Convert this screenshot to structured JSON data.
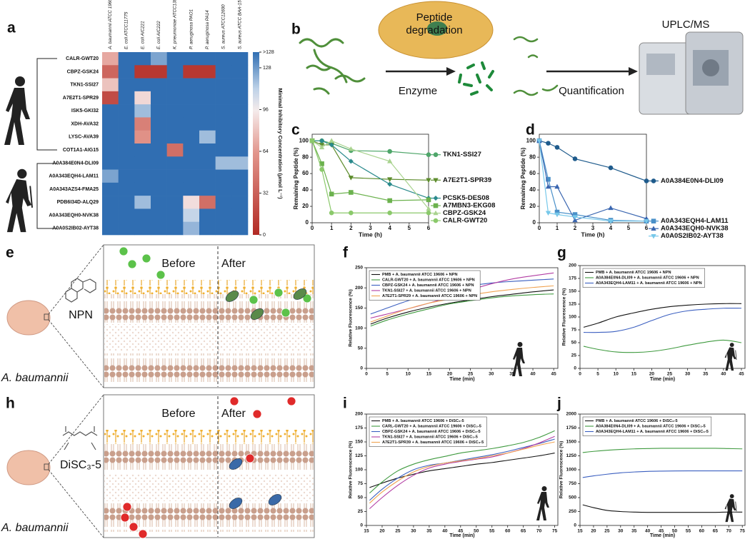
{
  "chart_data": [
    {
      "type": "heatmap",
      "panel": "a",
      "rows": [
        "CALR-GWT20",
        "CBPZ-GSK24",
        "TKN1-SSI27",
        "A7E2T1-SPR29",
        "ISK5-GKI32",
        "XDH-AVA32",
        "LYSC-AVA39",
        "COT1A1-AIG15",
        "A0A384E0N4-DLI09",
        "A0A343EQH4-LAM11",
        "A0A343AZS4-FMA25",
        "PDB6I34D-ALQ29",
        "A0A343EQH0-NVK38",
        "A0A0S2IB02-AYT38"
      ],
      "columns": [
        "A. baumannii ATCC 19606",
        "E. coli ATCC11775",
        "E. coli AIC221",
        "E. coli AIC222",
        "K. pneumoniae ATCC13883",
        "P. aeruginosa PAO1",
        "P. aeruginosa PA14",
        "S. aureus ATCC12600",
        "S. aureus ATCC BAA-1556"
      ],
      "values": [
        [
          70,
          140,
          140,
          125,
          140,
          140,
          140,
          140,
          140
        ],
        [
          35,
          140,
          8,
          8,
          140,
          8,
          8,
          140,
          140
        ],
        [
          80,
          140,
          140,
          140,
          140,
          140,
          140,
          140,
          140
        ],
        [
          20,
          140,
          88,
          140,
          140,
          140,
          140,
          140,
          140
        ],
        [
          140,
          140,
          118,
          140,
          140,
          140,
          140,
          140,
          140
        ],
        [
          140,
          140,
          50,
          140,
          140,
          140,
          140,
          140,
          140
        ],
        [
          140,
          140,
          60,
          140,
          140,
          140,
          118,
          140,
          140
        ],
        [
          140,
          140,
          140,
          140,
          40,
          140,
          140,
          140,
          140
        ],
        [
          140,
          140,
          140,
          140,
          140,
          140,
          140,
          118,
          118
        ],
        [
          125,
          140,
          140,
          140,
          140,
          140,
          140,
          140,
          140
        ],
        [
          140,
          140,
          140,
          140,
          140,
          140,
          140,
          140,
          140
        ],
        [
          140,
          140,
          118,
          140,
          140,
          90,
          40,
          140,
          140
        ],
        [
          140,
          140,
          140,
          140,
          140,
          110,
          140,
          140,
          140
        ],
        [
          140,
          140,
          140,
          140,
          140,
          120,
          140,
          140,
          140
        ]
      ],
      "zlim": [
        0,
        140
      ],
      "zticks": [
        0,
        32,
        64,
        96,
        128,
        {
          "value": 140,
          "label": ">128"
        }
      ],
      "zlabel": "Minimal Inhibitory Concentration (μmol L⁻¹)"
    },
    {
      "type": "line",
      "panel": "c",
      "xlabel": "Time (h)",
      "ylabel": "Remaining Peptide (%)",
      "x": [
        0,
        0.5,
        1,
        2,
        4,
        6
      ],
      "xlim": [
        0,
        6
      ],
      "ylim": [
        0,
        108
      ],
      "xticks": [
        0,
        1,
        2,
        3,
        4,
        5,
        6
      ],
      "yticks": [
        0,
        20,
        40,
        60,
        80,
        100
      ],
      "markers": true,
      "smooth": false,
      "legend": "right",
      "series": [
        {
          "name": "TKN1-SSI27",
          "color": "#4fa66a",
          "marker": "circle",
          "values": [
            100,
            100,
            97,
            88,
            87,
            83
          ]
        },
        {
          "name": "A7E2T1-SPR39",
          "color": "#5d8c2c",
          "marker": "triangle-down",
          "values": [
            100,
            95,
            95,
            55,
            53,
            52
          ]
        },
        {
          "name": "PCSK5-DES08",
          "color": "#2a8a8c",
          "marker": "diamond",
          "values": [
            100,
            100,
            95,
            75,
            47,
            30
          ]
        },
        {
          "name": "A7MBN3-EKG08",
          "color": "#6cb24e",
          "marker": "square",
          "values": [
            100,
            72,
            35,
            37,
            27,
            28
          ]
        },
        {
          "name": "CBPZ-GSK24",
          "color": "#a9d38f",
          "marker": "triangle",
          "values": [
            100,
            92,
            100,
            90,
            75,
            17
          ]
        },
        {
          "name": "CALR-GWT20",
          "color": "#8bc96b",
          "marker": "circle",
          "values": [
            100,
            65,
            12,
            12,
            12,
            12
          ]
        }
      ]
    },
    {
      "type": "line",
      "panel": "d",
      "xlabel": "Time (h)",
      "ylabel": "Remaining Peptide (%)",
      "x": [
        0,
        0.5,
        1,
        2,
        4,
        6
      ],
      "xlim": [
        0,
        6
      ],
      "ylim": [
        0,
        108
      ],
      "xticks": [
        0,
        1,
        2,
        3,
        4,
        5,
        6
      ],
      "yticks": [
        0,
        20,
        40,
        60,
        80,
        100
      ],
      "markers": true,
      "smooth": false,
      "legend": "right",
      "series": [
        {
          "name": "A0A384E0N4-DLI09",
          "color": "#1f5b8c",
          "marker": "circle",
          "values": [
            100,
            97,
            92,
            78,
            67,
            51
          ]
        },
        {
          "name": "A0A343EQH4-LAM11",
          "color": "#4a90c9",
          "marker": "square",
          "values": [
            100,
            53,
            13,
            10,
            3,
            2
          ]
        },
        {
          "name": "A0A343EQH0-NVK38",
          "color": "#3a66b0",
          "marker": "triangle",
          "values": [
            100,
            44,
            44,
            3,
            18,
            5
          ]
        },
        {
          "name": "A0A0S2IB02-AYT38",
          "color": "#77c8ea",
          "marker": "triangle-down",
          "values": [
            100,
            12,
            10,
            7,
            2,
            2
          ]
        }
      ]
    },
    {
      "type": "line",
      "panel": "f",
      "xlabel": "Time (min)",
      "ylabel": "Relative Fluorescence (%)",
      "x": [
        1,
        5,
        10,
        15,
        20,
        25,
        30,
        35,
        40,
        45
      ],
      "xlim": [
        0,
        46
      ],
      "ylim": [
        0,
        250
      ],
      "xticks": [
        0,
        5,
        10,
        15,
        20,
        25,
        30,
        35,
        40,
        45
      ],
      "yticks": [
        0,
        50,
        100,
        150,
        200,
        250
      ],
      "markers": false,
      "smooth": true,
      "legend": "upper left",
      "series": [
        {
          "name": "PMB + A. baumannii ATCC 19606 + NPN",
          "color": "#111111",
          "values": [
            110,
            125,
            140,
            152,
            162,
            170,
            178,
            184,
            190,
            195
          ]
        },
        {
          "name": "CALR-GWT20 + A. baumannii ATCC 19606 + NPN",
          "color": "#3f9a3f",
          "values": [
            105,
            120,
            135,
            148,
            160,
            168,
            175,
            180,
            183,
            185
          ]
        },
        {
          "name": "CBPZ-GSK24 + A. baumannii ATCC 19606 + NPN",
          "color": "#3b5fc0",
          "values": [
            135,
            150,
            168,
            182,
            195,
            205,
            212,
            216,
            219,
            222
          ]
        },
        {
          "name": "TKN1-SSI27 + A. baumannii ATCC 19606 + NPN",
          "color": "#b23ca3",
          "values": [
            125,
            135,
            148,
            162,
            178,
            195,
            210,
            222,
            230,
            237
          ]
        },
        {
          "name": "A7E2T1-SPR29 + A. baumannii ATCC 19606 + NPN",
          "color": "#f0a352",
          "values": [
            115,
            130,
            148,
            162,
            172,
            182,
            190,
            196,
            201,
            205
          ]
        }
      ]
    },
    {
      "type": "line",
      "panel": "g",
      "xlabel": "Time (min)",
      "ylabel": "Relative Fluorescence (%)",
      "x": [
        1,
        5,
        10,
        15,
        20,
        25,
        30,
        35,
        40,
        45
      ],
      "xlim": [
        0,
        46
      ],
      "ylim": [
        0,
        200
      ],
      "xticks": [
        0,
        5,
        10,
        15,
        20,
        25,
        30,
        35,
        40,
        45
      ],
      "yticks": [
        0,
        25,
        50,
        75,
        100,
        125,
        150,
        175,
        200
      ],
      "markers": false,
      "smooth": true,
      "legend": "upper left",
      "series": [
        {
          "name": "PMB + A. baumannii ATCC 19606 + NPN",
          "color": "#111111",
          "values": [
            80,
            88,
            100,
            108,
            115,
            120,
            123,
            125,
            126,
            126
          ]
        },
        {
          "name": "A0A384E0N4-DLI09 + A. baumannii ATCC 19606 + NPN",
          "color": "#3f9a3f",
          "values": [
            43,
            37,
            32,
            31,
            33,
            38,
            45,
            51,
            55,
            50
          ]
        },
        {
          "name": "A0A343EQH4-LAM11 + A. baumannii ATCC 19606 + NPN",
          "color": "#3b5fc0",
          "values": [
            70,
            70,
            72,
            80,
            93,
            105,
            112,
            115,
            117,
            117
          ]
        }
      ]
    },
    {
      "type": "line",
      "panel": "i",
      "xlabel": "Time (min)",
      "ylabel": "Relative Fluorescence (%)",
      "x": [
        16,
        20,
        25,
        30,
        35,
        40,
        45,
        50,
        55,
        60,
        65,
        70,
        75
      ],
      "xlim": [
        15,
        76
      ],
      "ylim": [
        0,
        200
      ],
      "xticks": [
        15,
        20,
        25,
        30,
        35,
        40,
        45,
        50,
        55,
        60,
        65,
        70,
        75
      ],
      "yticks": [
        0,
        25,
        50,
        75,
        100,
        125,
        150,
        175,
        200
      ],
      "markers": false,
      "smooth": true,
      "legend": "upper left",
      "series": [
        {
          "name": "PMB + A. baumannii ATCC 19606 + DiSC₃-5",
          "color": "#111111",
          "values": [
            68,
            76,
            85,
            92,
            98,
            102,
            106,
            110,
            113,
            117,
            121,
            125,
            130
          ]
        },
        {
          "name": "CARL-GWT20 + A. baumannii ATCC 19606 + DiSC₃-5",
          "color": "#3f9a3f",
          "values": [
            58,
            78,
            98,
            110,
            118,
            124,
            130,
            134,
            138,
            143,
            149,
            158,
            170
          ]
        },
        {
          "name": "CBPZ-GSK24 + A. baumannii ATCC 19606 + DiSC₃-5",
          "color": "#3b5fc0",
          "values": [
            45,
            65,
            85,
            100,
            108,
            112,
            117,
            122,
            127,
            133,
            140,
            147,
            155
          ]
        },
        {
          "name": "TKN1-SSI27 + A. baumannii ATCC 19606 + DiSC₃-5",
          "color": "#b23ca3",
          "values": [
            30,
            50,
            72,
            90,
            103,
            110,
            115,
            119,
            123,
            130,
            138,
            148,
            160
          ]
        },
        {
          "name": "A7E2T1-SPR39 + A. baumannii ATCC 19606 + DiSC₃-5",
          "color": "#f0a352",
          "values": [
            40,
            60,
            80,
            96,
            106,
            112,
            116,
            120,
            125,
            130,
            137,
            144,
            150
          ]
        }
      ]
    },
    {
      "type": "line",
      "panel": "j",
      "xlabel": "Time (min)",
      "ylabel": "Relative Fluorescence (%)",
      "x": [
        16,
        20,
        25,
        30,
        35,
        40,
        45,
        50,
        55,
        60,
        65,
        70,
        75
      ],
      "xlim": [
        15,
        76
      ],
      "ylim": [
        0,
        2000
      ],
      "xticks": [
        15,
        20,
        25,
        30,
        35,
        40,
        45,
        50,
        55,
        60,
        65,
        70,
        75
      ],
      "yticks": [
        0,
        250,
        500,
        750,
        1000,
        1250,
        1500,
        1750,
        2000
      ],
      "markers": false,
      "smooth": true,
      "legend": "upper left",
      "series": [
        {
          "name": "PMB + A. baumannii ATCC 19606 + DiSC₃-5",
          "color": "#111111",
          "values": [
            370,
            320,
            270,
            250,
            240,
            235,
            235,
            235,
            235,
            235,
            235,
            240,
            240
          ]
        },
        {
          "name": "A0A384E0N4-DLI09 + A. baumannii ATCC 19606 + DiSC₃-5",
          "color": "#3f9a3f",
          "values": [
            1310,
            1330,
            1350,
            1365,
            1375,
            1380,
            1385,
            1385,
            1385,
            1385,
            1385,
            1380,
            1375
          ]
        },
        {
          "name": "A0A343EQH4-LAM11 + A. baumannii ATCC 19606 + DiSC₃-5",
          "color": "#3b5fc0",
          "values": [
            860,
            890,
            920,
            945,
            960,
            970,
            975,
            978,
            980,
            980,
            980,
            980,
            980
          ]
        }
      ]
    }
  ],
  "diagrams": {
    "b": {
      "panel": "b",
      "step1": "Peptide degradation",
      "arrow1": "Enzyme",
      "arrow2": "Quantification",
      "instrument": "UPLC/MS"
    },
    "e": {
      "panel": "e",
      "before": "Before",
      "after": "After",
      "probe": "NPN",
      "organism": "A. baumannii"
    },
    "h": {
      "panel": "h",
      "before": "Before",
      "after": "After",
      "probe": "DiSC₃-5",
      "organism": "A. baumannii"
    }
  }
}
